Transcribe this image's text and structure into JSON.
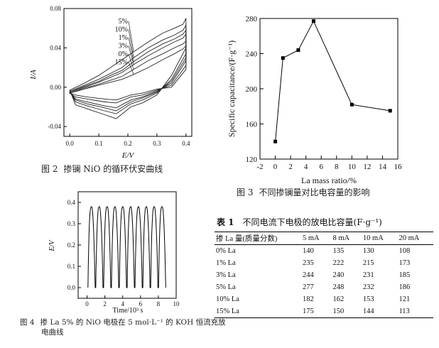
{
  "figures": {
    "fig2": {
      "label": "图 2",
      "caption": "掺镧 NiO 的循环伏安曲线",
      "xlabel": "E/V",
      "ylabel": "I/A",
      "series_labels": [
        "5%",
        "10%",
        "1%",
        "3%",
        "0%",
        "15%"
      ]
    },
    "fig3": {
      "label": "图 3",
      "caption": "不同掺镧量对比电容量的影响",
      "xlabel": "La mass ratio/%",
      "ylabel": "Specific capacitance/(F·g⁻¹)"
    },
    "fig4": {
      "label": "图 4",
      "caption_line1": "掺 La 5% 的 NiO 电极在 5 mol·L⁻¹ 的 KOH 恒流充放",
      "caption_line2": "电曲线",
      "xlabel": "Time/10³ s",
      "ylabel": "E/V"
    }
  },
  "table1": {
    "label": "表 1",
    "title": "不同电流下电极的放电比容量(F·g⁻¹)",
    "columns": [
      "掺 La 量(质量分数)",
      "5 mA",
      "8 mA",
      "10 mA",
      "20 mA"
    ],
    "rows": [
      [
        "0% La",
        "140",
        "135",
        "130",
        "108"
      ],
      [
        "1% La",
        "235",
        "222",
        "215",
        "173"
      ],
      [
        "3% La",
        "244",
        "240",
        "231",
        "185"
      ],
      [
        "5% La",
        "277",
        "248",
        "232",
        "186"
      ],
      [
        "10% La",
        "182",
        "162",
        "153",
        "121"
      ],
      [
        "15% La",
        "175",
        "150",
        "144",
        "113"
      ]
    ]
  },
  "chart_data": [
    {
      "id": "fig2",
      "type": "line",
      "title": "",
      "xlabel": "E/V",
      "ylabel": "I/A",
      "xlim": [
        -0.02,
        0.42
      ],
      "ylim": [
        -0.05,
        0.08
      ],
      "xticks": [
        "0.0",
        "0.1",
        "0.2",
        "0.3",
        "0.4"
      ],
      "yticks": [
        "-0.04",
        "0.00",
        "0.04",
        "0.08"
      ],
      "series": [
        {
          "name": "5%",
          "upper": [
            [
              0,
              -0.003
            ],
            [
              0.05,
              0.004
            ],
            [
              0.1,
              0.012
            ],
            [
              0.14,
              0.02
            ],
            [
              0.18,
              0.028
            ],
            [
              0.22,
              0.036
            ],
            [
              0.27,
              0.046
            ],
            [
              0.32,
              0.055
            ],
            [
              0.36,
              0.06
            ],
            [
              0.39,
              0.064
            ],
            [
              0.4,
              0.07
            ]
          ],
          "lower": [
            [
              0.4,
              0.04
            ],
            [
              0.35,
              0.012
            ],
            [
              0.3,
              -0.008
            ],
            [
              0.25,
              -0.016
            ],
            [
              0.21,
              -0.02
            ],
            [
              0.16,
              -0.032
            ],
            [
              0.12,
              -0.028
            ],
            [
              0.06,
              -0.022
            ],
            [
              0.02,
              -0.018
            ],
            [
              0,
              -0.003
            ]
          ]
        },
        {
          "name": "10%",
          "upper": [
            [
              0,
              -0.004
            ],
            [
              0.05,
              0.002
            ],
            [
              0.1,
              0.008
            ],
            [
              0.14,
              0.014
            ],
            [
              0.18,
              0.02
            ],
            [
              0.22,
              0.03
            ],
            [
              0.27,
              0.04
            ],
            [
              0.32,
              0.048
            ],
            [
              0.36,
              0.053
            ],
            [
              0.39,
              0.058
            ],
            [
              0.4,
              0.063
            ]
          ],
          "lower": [
            [
              0.4,
              0.034
            ],
            [
              0.35,
              0.008
            ],
            [
              0.3,
              -0.006
            ],
            [
              0.25,
              -0.013
            ],
            [
              0.21,
              -0.017
            ],
            [
              0.16,
              -0.027
            ],
            [
              0.12,
              -0.024
            ],
            [
              0.06,
              -0.019
            ],
            [
              0.02,
              -0.015
            ],
            [
              0,
              -0.004
            ]
          ]
        },
        {
          "name": "1%",
          "upper": [
            [
              0,
              -0.005
            ],
            [
              0.05,
              0.001
            ],
            [
              0.1,
              0.006
            ],
            [
              0.14,
              0.012
            ],
            [
              0.18,
              0.017
            ],
            [
              0.22,
              0.026
            ],
            [
              0.27,
              0.036
            ],
            [
              0.32,
              0.044
            ],
            [
              0.36,
              0.049
            ],
            [
              0.39,
              0.054
            ],
            [
              0.4,
              0.058
            ]
          ],
          "lower": [
            [
              0.4,
              0.03
            ],
            [
              0.35,
              0.006
            ],
            [
              0.3,
              -0.005
            ],
            [
              0.25,
              -0.011
            ],
            [
              0.21,
              -0.015
            ],
            [
              0.16,
              -0.024
            ],
            [
              0.12,
              -0.021
            ],
            [
              0.06,
              -0.017
            ],
            [
              0.02,
              -0.013
            ],
            [
              0,
              -0.005
            ]
          ]
        },
        {
          "name": "3%",
          "upper": [
            [
              0,
              -0.005
            ],
            [
              0.05,
              0.0
            ],
            [
              0.1,
              0.005
            ],
            [
              0.14,
              0.01
            ],
            [
              0.18,
              0.015
            ],
            [
              0.22,
              0.023
            ],
            [
              0.27,
              0.032
            ],
            [
              0.32,
              0.04
            ],
            [
              0.36,
              0.046
            ],
            [
              0.39,
              0.05
            ],
            [
              0.4,
              0.054
            ]
          ],
          "lower": [
            [
              0.4,
              0.027
            ],
            [
              0.35,
              0.004
            ],
            [
              0.3,
              -0.004
            ],
            [
              0.25,
              -0.01
            ],
            [
              0.21,
              -0.013
            ],
            [
              0.16,
              -0.021
            ],
            [
              0.12,
              -0.019
            ],
            [
              0.06,
              -0.015
            ],
            [
              0.02,
              -0.012
            ],
            [
              0,
              -0.005
            ]
          ]
        },
        {
          "name": "0%",
          "upper": [
            [
              0,
              -0.006
            ],
            [
              0.05,
              -0.001
            ],
            [
              0.1,
              0.003
            ],
            [
              0.14,
              0.007
            ],
            [
              0.18,
              0.011
            ],
            [
              0.22,
              0.018
            ],
            [
              0.27,
              0.027
            ],
            [
              0.32,
              0.034
            ],
            [
              0.36,
              0.04
            ],
            [
              0.39,
              0.044
            ],
            [
              0.4,
              0.047
            ]
          ],
          "lower": [
            [
              0.4,
              0.022
            ],
            [
              0.35,
              0.002
            ],
            [
              0.3,
              -0.003
            ],
            [
              0.25,
              -0.008
            ],
            [
              0.21,
              -0.01
            ],
            [
              0.16,
              -0.016
            ],
            [
              0.12,
              -0.015
            ],
            [
              0.06,
              -0.012
            ],
            [
              0.02,
              -0.01
            ],
            [
              0,
              -0.006
            ]
          ]
        },
        {
          "name": "15%",
          "upper": [
            [
              0,
              -0.006
            ],
            [
              0.05,
              -0.002
            ],
            [
              0.1,
              0.002
            ],
            [
              0.14,
              0.005
            ],
            [
              0.18,
              0.008
            ],
            [
              0.22,
              0.013
            ],
            [
              0.27,
              0.02
            ],
            [
              0.32,
              0.028
            ],
            [
              0.36,
              0.034
            ],
            [
              0.39,
              0.039
            ],
            [
              0.4,
              0.042
            ]
          ],
          "lower": [
            [
              0.4,
              0.018
            ],
            [
              0.35,
              0.0
            ],
            [
              0.3,
              -0.002
            ],
            [
              0.25,
              -0.006
            ],
            [
              0.21,
              -0.008
            ],
            [
              0.16,
              -0.013
            ],
            [
              0.12,
              -0.012
            ],
            [
              0.06,
              -0.01
            ],
            [
              0.02,
              -0.008
            ],
            [
              0,
              -0.006
            ]
          ]
        }
      ]
    },
    {
      "id": "fig3",
      "type": "line",
      "title": "",
      "xlabel": "La mass ratio/%",
      "ylabel": "Specific capacitance/(F·g⁻¹)",
      "xlim": [
        -2,
        16
      ],
      "ylim": [
        120,
        280
      ],
      "xticks": [
        -2,
        0,
        2,
        4,
        6,
        8,
        10,
        12,
        14,
        16
      ],
      "yticks": [
        120,
        160,
        200,
        240,
        280
      ],
      "x": [
        0,
        1,
        3,
        5,
        10,
        15
      ],
      "values": [
        140,
        235,
        244,
        277,
        182,
        175
      ]
    },
    {
      "id": "fig4",
      "type": "line",
      "title": "",
      "xlabel": "Time/10³ s",
      "ylabel": "E/V",
      "xlim": [
        -1,
        10
      ],
      "ylim": [
        -0.05,
        0.45
      ],
      "xticks": [
        0,
        2,
        4,
        6,
        8,
        10
      ],
      "yticks": [
        "0.0",
        "0.1",
        "0.2",
        "0.3",
        "0.4"
      ],
      "cycles": 10,
      "period": 0.88,
      "start": 0.1,
      "vmin": 0.0,
      "vmax": 0.38
    }
  ]
}
